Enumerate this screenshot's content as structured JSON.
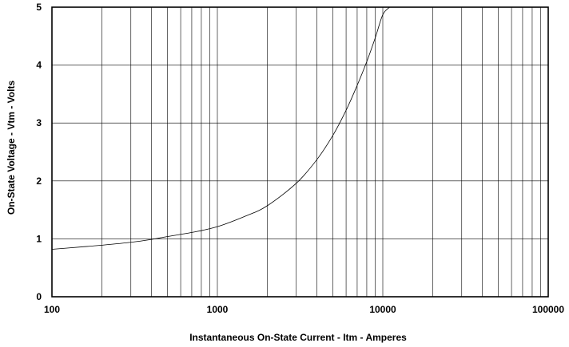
{
  "chart_data": {
    "type": "line",
    "title": "",
    "xlabel": "Instantaneous On-State Current  -  Itm  -  Amperes",
    "ylabel": "On-State Voltage  -  Vtm  -  Volts",
    "x_scale": "log",
    "xlim": [
      100,
      100000
    ],
    "ylim": [
      0,
      5
    ],
    "x_ticks": [
      "100",
      "1000",
      "10000",
      "100000"
    ],
    "y_ticks": [
      "0",
      "1",
      "2",
      "3",
      "4",
      "5"
    ],
    "grid": true,
    "legend": "none",
    "line_color": "#000000",
    "series": [
      {
        "x": [
          100,
          150,
          200,
          300,
          400,
          500,
          700,
          1000,
          1500,
          2000,
          3000,
          4000,
          5000,
          6000,
          7000,
          8000,
          9000,
          10000,
          11000
        ],
        "y": [
          0.82,
          0.86,
          0.89,
          0.94,
          0.99,
          1.04,
          1.11,
          1.21,
          1.4,
          1.57,
          1.96,
          2.37,
          2.79,
          3.22,
          3.65,
          4.06,
          4.47,
          4.87,
          5.0
        ]
      }
    ]
  }
}
